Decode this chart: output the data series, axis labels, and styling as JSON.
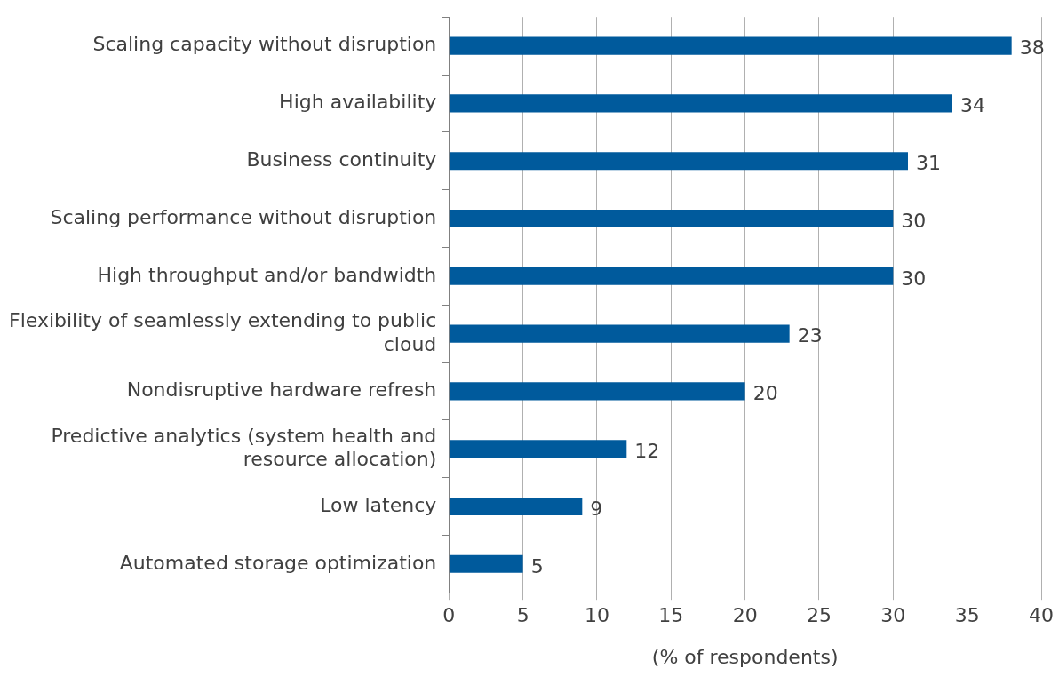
{
  "chart_data": {
    "type": "bar",
    "orientation": "horizontal",
    "categories": [
      "Scaling capacity without disruption",
      "High availability",
      "Business continuity",
      "Scaling performance without disruption",
      "High throughput and/or bandwidth",
      "Flexibility of seamlessly extending to public cloud",
      "Nondisruptive hardware refresh",
      "Predictive analytics (system health and resource allocation)",
      "Low latency",
      "Automated storage optimization"
    ],
    "values": [
      38,
      34,
      31,
      30,
      30,
      23,
      20,
      12,
      9,
      5
    ],
    "color": "#005a9c",
    "xlim": [
      0,
      40
    ],
    "xticks": [
      0,
      5,
      10,
      15,
      20,
      25,
      30,
      35,
      40
    ],
    "xlabel": "(% of respondents)",
    "grid": "x",
    "legend": false,
    "data_labels": true
  }
}
